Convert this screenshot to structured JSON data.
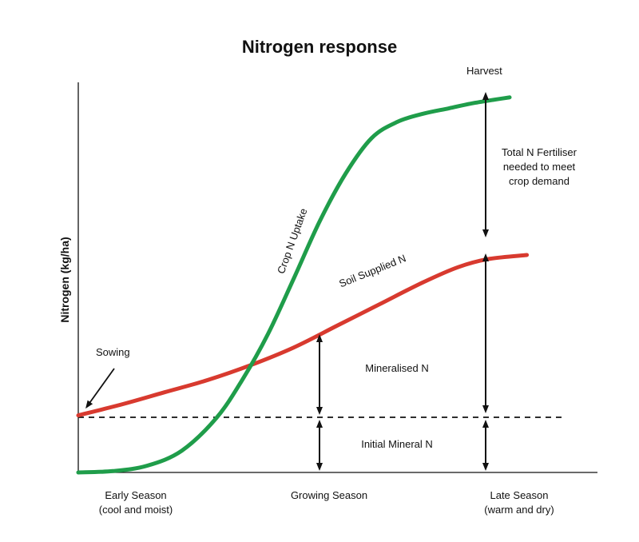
{
  "chart_data": {
    "type": "line",
    "title": "Nitrogen response",
    "xlabel": "",
    "ylabel": "Nitrogen (kg/ha)",
    "x_tick_labels": [
      {
        "line1": "Early Season",
        "line2": "(cool and moist)"
      },
      {
        "line1": "Growing Season",
        "line2": ""
      },
      {
        "line1": "Late Season",
        "line2": "(warm and dry)"
      }
    ],
    "grid": false,
    "series": [
      {
        "name": "Crop N Uptake",
        "color": "#1f9d4a",
        "points": [
          [
            0,
            0
          ],
          [
            8,
            1
          ],
          [
            16,
            5
          ],
          [
            24,
            16
          ],
          [
            32,
            40
          ],
          [
            38,
            68
          ],
          [
            44,
            102
          ],
          [
            50,
            143
          ],
          [
            56,
            185
          ],
          [
            62,
            220
          ],
          [
            68,
            246
          ],
          [
            74,
            258
          ],
          [
            80,
            264
          ],
          [
            86,
            268
          ],
          [
            92,
            272
          ],
          [
            100,
            276
          ]
        ]
      },
      {
        "name": "Soil Supplied N",
        "color": "#d83a2f",
        "points": [
          [
            0,
            42
          ],
          [
            10,
            50
          ],
          [
            20,
            59
          ],
          [
            30,
            68
          ],
          [
            40,
            79
          ],
          [
            50,
            92
          ],
          [
            60,
            108
          ],
          [
            70,
            124
          ],
          [
            80,
            140
          ],
          [
            88,
            151
          ],
          [
            95,
            157
          ],
          [
            104,
            160
          ]
        ]
      }
    ],
    "reference_lines": [
      {
        "name": "Initial Mineral N level",
        "y": 42,
        "style": "dashed"
      }
    ],
    "annotations": {
      "sowing": "Sowing",
      "harvest": "Harvest",
      "crop_uptake": "Crop N Uptake",
      "soil_supplied": "Soil Supplied N",
      "mineralised": "Mineralised N",
      "initial_mineral": "Initial Mineral N",
      "fertiliser": [
        "Total N Fertiliser",
        "needed to meet",
        "crop demand"
      ]
    }
  }
}
